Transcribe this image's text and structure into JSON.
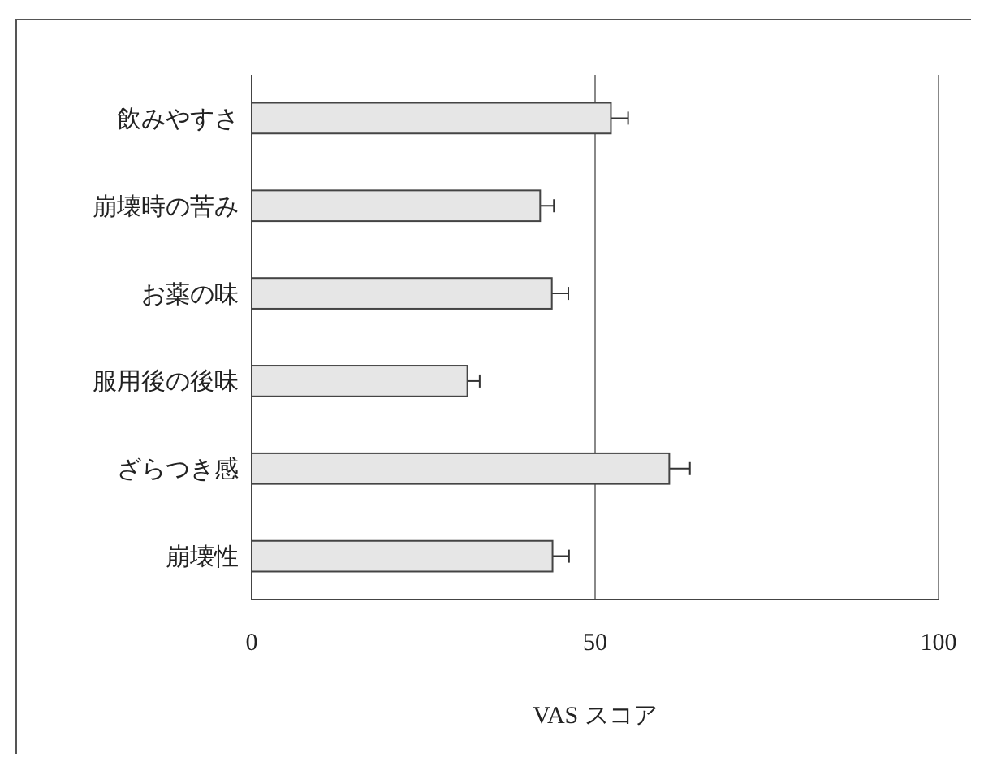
{
  "chart_data": {
    "type": "bar",
    "orientation": "horizontal",
    "categories": [
      "飲みやすさ",
      "崩壊時の苦み",
      "お薬の味",
      "服用後の後味",
      "ざらつき感",
      "崩壊性"
    ],
    "values": [
      52.3,
      42.0,
      43.7,
      31.4,
      60.8,
      43.8
    ],
    "errors": [
      2.5,
      2.0,
      2.4,
      1.8,
      3.0,
      2.4
    ],
    "color": "#e6e6e6",
    "xlabel": "VAS スコア",
    "xlim": [
      0,
      100
    ],
    "xticks": [
      0,
      50,
      100
    ],
    "grid": "x"
  }
}
